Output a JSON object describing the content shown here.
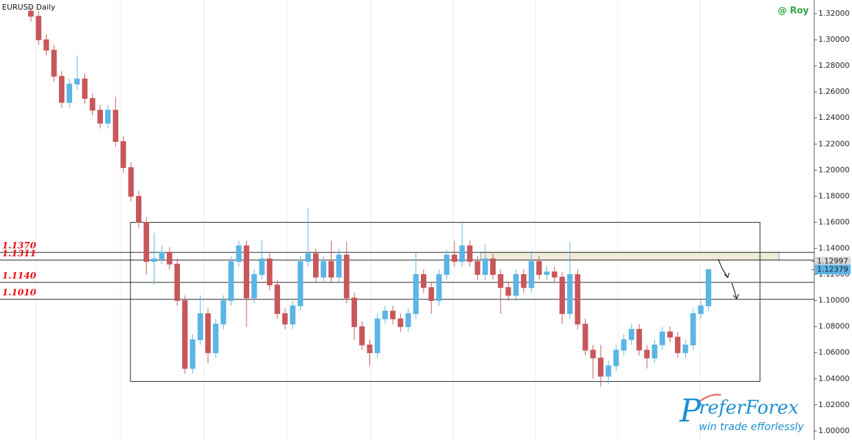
{
  "chart_data": {
    "type": "candlestick",
    "title": "EURUSD Daily",
    "author": "@ Roy",
    "ylim": [
      0.9931,
      1.3305
    ],
    "yticks": [
      {
        "value": 1.0,
        "label": "1.00000"
      },
      {
        "value": 1.02,
        "label": "1.02000"
      },
      {
        "value": 1.04,
        "label": "1.04000"
      },
      {
        "value": 1.06,
        "label": "1.06000"
      },
      {
        "value": 1.08,
        "label": "1.08000"
      },
      {
        "value": 1.1,
        "label": "1.10000"
      },
      {
        "value": 1.12,
        "label": "1.12000"
      },
      {
        "value": 1.14,
        "label": "1.14000"
      },
      {
        "value": 1.16,
        "label": "1.16000"
      },
      {
        "value": 1.18,
        "label": "1.18000"
      },
      {
        "value": 1.2,
        "label": "1.20000"
      },
      {
        "value": 1.22,
        "label": "1.22000"
      },
      {
        "value": 1.24,
        "label": "1.24000"
      },
      {
        "value": 1.26,
        "label": "1.26000"
      },
      {
        "value": 1.28,
        "label": "1.28000"
      },
      {
        "value": 1.3,
        "label": "1.30000"
      },
      {
        "value": 1.32,
        "label": "1.32000"
      }
    ],
    "up_color": "#5bb5e6",
    "down_color": "#c8575b",
    "open": [
      1.322,
      1.318,
      1.3,
      1.292,
      1.272,
      1.252,
      1.266,
      1.27,
      1.255,
      1.246,
      1.236,
      1.246,
      1.222,
      1.202,
      1.18,
      1.16,
      1.13,
      1.132,
      1.137,
      1.128,
      1.1,
      1.048,
      1.07,
      1.09,
      1.06,
      1.082,
      1.1,
      1.13,
      1.142,
      1.102,
      1.12,
      1.132,
      1.112,
      1.09,
      1.082,
      1.096,
      1.13,
      1.136,
      1.118,
      1.13,
      1.118,
      1.135,
      1.102,
      1.08,
      1.066,
      1.06,
      1.086,
      1.092,
      1.086,
      1.08,
      1.09,
      1.12,
      1.11,
      1.1,
      1.12,
      1.135,
      1.13,
      1.142,
      1.13,
      1.12,
      1.132,
      1.12,
      1.11,
      1.104,
      1.12,
      1.11,
      1.13,
      1.12,
      1.122,
      1.118,
      1.09,
      1.12,
      1.082,
      1.062,
      1.056,
      1.042,
      1.05,
      1.062,
      1.07,
      1.078,
      1.062,
      1.056,
      1.066,
      1.076,
      1.072,
      1.06,
      1.066,
      1.09,
      1.096
    ],
    "high": [
      1.326,
      1.322,
      1.304,
      1.296,
      1.276,
      1.27,
      1.288,
      1.274,
      1.259,
      1.25,
      1.25,
      1.256,
      1.226,
      1.206,
      1.184,
      1.164,
      1.152,
      1.142,
      1.141,
      1.132,
      1.104,
      1.074,
      1.104,
      1.094,
      1.086,
      1.104,
      1.134,
      1.146,
      1.146,
      1.124,
      1.146,
      1.136,
      1.116,
      1.094,
      1.1,
      1.134,
      1.171,
      1.14,
      1.134,
      1.146,
      1.14,
      1.145,
      1.106,
      1.084,
      1.07,
      1.09,
      1.096,
      1.096,
      1.09,
      1.094,
      1.137,
      1.124,
      1.114,
      1.124,
      1.139,
      1.146,
      1.161,
      1.146,
      1.134,
      1.143,
      1.136,
      1.124,
      1.114,
      1.124,
      1.124,
      1.138,
      1.134,
      1.126,
      1.126,
      1.122,
      1.145,
      1.124,
      1.086,
      1.066,
      1.066,
      1.054,
      1.066,
      1.074,
      1.082,
      1.082,
      1.066,
      1.07,
      1.08,
      1.08,
      1.076,
      1.07,
      1.094,
      1.1,
      1.124
    ],
    "low": [
      1.314,
      1.296,
      1.288,
      1.268,
      1.248,
      1.248,
      1.262,
      1.251,
      1.242,
      1.232,
      1.232,
      1.218,
      1.198,
      1.176,
      1.156,
      1.12,
      1.112,
      1.128,
      1.124,
      1.096,
      1.044,
      1.044,
      1.066,
      1.052,
      1.056,
      1.078,
      1.096,
      1.126,
      1.08,
      1.098,
      1.116,
      1.108,
      1.086,
      1.078,
      1.078,
      1.092,
      1.126,
      1.114,
      1.114,
      1.114,
      1.114,
      1.098,
      1.07,
      1.062,
      1.05,
      1.056,
      1.082,
      1.082,
      1.076,
      1.076,
      1.086,
      1.106,
      1.09,
      1.096,
      1.116,
      1.126,
      1.126,
      1.126,
      1.116,
      1.116,
      1.116,
      1.09,
      1.1,
      1.1,
      1.106,
      1.106,
      1.116,
      1.116,
      1.114,
      1.082,
      1.086,
      1.078,
      1.058,
      1.04,
      1.034,
      1.036,
      1.046,
      1.058,
      1.066,
      1.058,
      1.048,
      1.052,
      1.062,
      1.068,
      1.056,
      1.056,
      1.062,
      1.086,
      1.092
    ],
    "close": [
      1.318,
      1.3,
      1.292,
      1.272,
      1.252,
      1.266,
      1.27,
      1.255,
      1.246,
      1.236,
      1.246,
      1.222,
      1.202,
      1.18,
      1.16,
      1.13,
      1.132,
      1.137,
      1.128,
      1.1,
      1.048,
      1.07,
      1.09,
      1.06,
      1.082,
      1.1,
      1.13,
      1.142,
      1.102,
      1.12,
      1.132,
      1.112,
      1.09,
      1.082,
      1.096,
      1.13,
      1.136,
      1.118,
      1.13,
      1.118,
      1.135,
      1.102,
      1.08,
      1.066,
      1.06,
      1.086,
      1.092,
      1.086,
      1.08,
      1.09,
      1.12,
      1.11,
      1.1,
      1.12,
      1.135,
      1.13,
      1.142,
      1.13,
      1.12,
      1.132,
      1.12,
      1.11,
      1.104,
      1.12,
      1.11,
      1.13,
      1.12,
      1.122,
      1.118,
      1.09,
      1.12,
      1.082,
      1.062,
      1.056,
      1.042,
      1.05,
      1.062,
      1.07,
      1.078,
      1.062,
      1.056,
      1.066,
      1.076,
      1.072,
      1.06,
      1.066,
      1.09,
      1.096,
      1.1238
    ],
    "levels": [
      {
        "value": 1.137,
        "label": "1.1370"
      },
      {
        "value": 1.1311,
        "label": "1.1311"
      },
      {
        "value": 1.114,
        "label": "1.1140"
      },
      {
        "value": 1.101,
        "label": "1.1010"
      }
    ],
    "level_color": "#e8101a",
    "range_box": {
      "top": 1.16,
      "bottom": 1.038
    },
    "zone": {
      "top": 1.137,
      "bottom": 1.1311,
      "color": "#efecd9"
    },
    "price_markers": [
      {
        "value": 1.12997,
        "label": "1.12997",
        "color": "#d9d9d9"
      },
      {
        "value": 1.12379,
        "label": "1.12379",
        "color": "#5bb5e6"
      }
    ],
    "logo": {
      "brand_p": "P",
      "brand": "referForex",
      "tagline": "win trade efforlessly"
    }
  }
}
